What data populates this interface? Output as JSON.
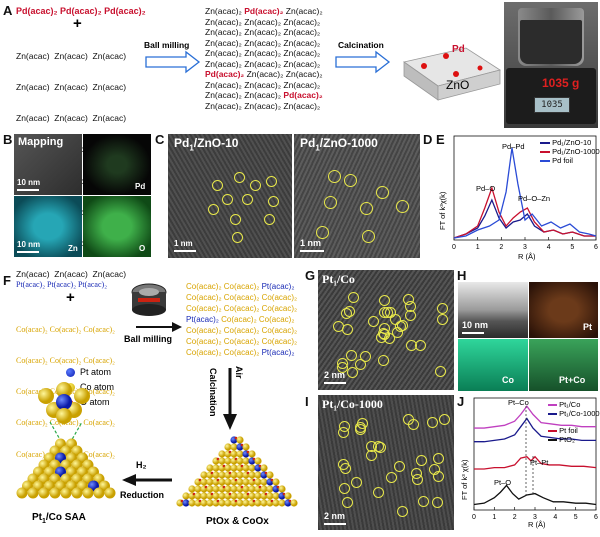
{
  "panels": {
    "a": "A",
    "b": "B",
    "c": "C",
    "d": "D",
    "e": "E",
    "f": "F",
    "g": "G",
    "h": "H",
    "i": "I",
    "j": "J"
  },
  "panelA": {
    "top_row": [
      "Pd(acac)",
      "Pd(acac)",
      "Pd(acac)"
    ],
    "plus": "+",
    "zn_row": "Zn(acac)  Zn(acac)  Zn(acac)",
    "ball_milling": "Ball milling",
    "calcination": "Calcination",
    "pd_label": "Pd",
    "zno_label": "ZnO",
    "mass": "1035 g",
    "scale_display": "1035"
  },
  "panelB": {
    "title": "Mapping",
    "scale": "10 nm",
    "el_pd": "Pd",
    "el_zn": "Zn",
    "el_o": "O"
  },
  "panelC": {
    "title_main": "Pd",
    "title_sub": "1",
    "title_rest": "/ZnO-10",
    "scale": "1 nm"
  },
  "panelD": {
    "title_main": "Pd",
    "title_sub": "1",
    "title_rest": "/ZnO-1000",
    "scale": "1 nm"
  },
  "panelE": {
    "ylabel": "FT of k³χ(k)",
    "xlabel": "R (Å)",
    "legend": [
      "Pd₁/ZnO-10",
      "Pd₁/ZnO-1000",
      "Pd foil"
    ],
    "annotations": [
      "Pd–Pd",
      "Pd–O",
      "Pd–O–Zn"
    ],
    "xticks": [
      "0",
      "1",
      "2",
      "3",
      "4",
      "5",
      "6"
    ]
  },
  "panelF": {
    "pt_row": "Pt(acac)₂ Pt(acac)₂ Pt(acac)₂",
    "plus": "+",
    "co_row": "Co(acac)₂ Co(acac)₂ Co(acac)₂",
    "ball_milling": "Ball milling",
    "air": "Air",
    "calcination": "Calcination",
    "h2": "H₂",
    "reduction": "Reduction",
    "pt_atom": "Pt atom",
    "co_atom": "Co atom",
    "o_atom": "O atom",
    "saa_label": "Pt₁/Co SAA",
    "oxide_label": "PtOx & CoOx",
    "mix_pt": "Pt(acac)₂",
    "mix_co": "Co(acac)₂"
  },
  "panelG": {
    "title": "Pt₁/Co",
    "scale": "2 nm"
  },
  "panelH": {
    "scale": "10 nm",
    "el_pt": "Pt",
    "el_co": "Co",
    "el_ptco": "Pt+Co"
  },
  "panelI": {
    "title": "Pt₁/Co-1000",
    "scale": "2 nm"
  },
  "panelJ": {
    "ylabel": "FT of k³ χ(k)",
    "xlabel": "R (Å)",
    "legend": [
      "Pt₁/Co",
      "Pt₁/Co-1000",
      "Pt foil",
      "PtO₂"
    ],
    "annotations": [
      "Pt–Co",
      "Pt–Pt",
      "Pt–O"
    ],
    "xticks": [
      "0",
      "1",
      "2",
      "3",
      "4",
      "5",
      "6"
    ]
  },
  "chart_data": [
    {
      "type": "line",
      "panel": "E",
      "xlabel": "R (Å)",
      "ylabel": "FT of k³χ(k)",
      "xlim": [
        0,
        6
      ],
      "series": [
        {
          "name": "Pd₁/ZnO-10",
          "color": "#1a1a8c",
          "x": [
            0,
            0.5,
            1.0,
            1.3,
            1.6,
            1.9,
            2.2,
            2.5,
            2.8,
            3.1,
            3.4,
            3.8,
            4.2,
            4.6,
            5.0,
            5.5,
            6.0
          ],
          "y": [
            0.1,
            0.3,
            0.6,
            1.2,
            2.0,
            1.1,
            0.6,
            0.9,
            1.0,
            1.3,
            0.7,
            0.4,
            0.5,
            0.3,
            0.4,
            0.2,
            0.2
          ]
        },
        {
          "name": "Pd₁/ZnO-1000",
          "color": "#c8102e",
          "x": [
            0,
            0.5,
            1.0,
            1.3,
            1.6,
            1.9,
            2.2,
            2.5,
            2.8,
            3.1,
            3.4,
            3.8,
            4.2,
            4.6,
            5.0,
            5.5,
            6.0
          ],
          "y": [
            0.1,
            0.3,
            0.7,
            1.6,
            2.6,
            1.4,
            0.7,
            1.1,
            1.4,
            1.6,
            0.9,
            0.4,
            0.5,
            0.3,
            0.4,
            0.2,
            0.2
          ]
        },
        {
          "name": "Pd foil",
          "color": "#2a4bd6",
          "x": [
            0,
            0.5,
            1.0,
            1.5,
            1.9,
            2.2,
            2.45,
            2.7,
            3.0,
            3.3,
            3.7,
            4.1,
            4.5,
            4.9,
            5.3,
            5.7,
            6.0
          ],
          "y": [
            0.1,
            0.2,
            0.5,
            0.7,
            1.0,
            2.4,
            4.6,
            2.8,
            1.0,
            1.3,
            0.7,
            0.9,
            0.6,
            0.8,
            0.4,
            0.3,
            0.2
          ]
        }
      ]
    },
    {
      "type": "line",
      "panel": "J",
      "xlabel": "R (Å)",
      "ylabel": "FT of k³ χ(k)",
      "xlim": [
        0,
        6
      ],
      "series": [
        {
          "name": "Pt₁/Co",
          "color": "#c040c0",
          "x": [
            0,
            0.5,
            1.0,
            1.5,
            2.0,
            2.3,
            2.6,
            2.9,
            3.3,
            3.8,
            4.3,
            4.8,
            5.3,
            6.0
          ],
          "y": [
            6.0,
            6.0,
            6.1,
            6.2,
            6.5,
            7.0,
            7.6,
            7.0,
            6.4,
            6.3,
            6.2,
            6.2,
            6.1,
            6.1
          ]
        },
        {
          "name": "Pt₁/Co-1000",
          "color": "#1a1a8c",
          "x": [
            0,
            0.5,
            1.0,
            1.5,
            2.0,
            2.3,
            2.6,
            2.9,
            3.3,
            3.8,
            4.3,
            4.8,
            5.3,
            6.0
          ],
          "y": [
            5.0,
            5.0,
            5.1,
            5.2,
            5.5,
            6.1,
            6.7,
            6.0,
            5.4,
            5.3,
            5.2,
            5.2,
            5.1,
            5.1
          ]
        },
        {
          "name": "Pt foil",
          "color": "#c8102e",
          "x": [
            0,
            0.5,
            1.0,
            1.5,
            2.0,
            2.3,
            2.6,
            2.8,
            3.0,
            3.3,
            3.7,
            4.2,
            4.8,
            5.4,
            6.0
          ],
          "y": [
            3.0,
            3.0,
            3.1,
            3.1,
            3.3,
            3.8,
            3.9,
            3.6,
            3.9,
            3.4,
            3.3,
            3.3,
            3.2,
            3.2,
            3.1
          ]
        },
        {
          "name": "PtO₂",
          "color": "#111111",
          "x": [
            0,
            0.5,
            1.0,
            1.3,
            1.6,
            1.9,
            2.2,
            2.6,
            3.0,
            3.4,
            3.9,
            4.4,
            5.0,
            5.5,
            6.0
          ],
          "y": [
            0.4,
            0.5,
            0.9,
            1.3,
            1.8,
            1.2,
            0.8,
            1.1,
            1.2,
            0.9,
            0.6,
            0.6,
            0.5,
            0.5,
            0.4
          ]
        }
      ]
    }
  ]
}
